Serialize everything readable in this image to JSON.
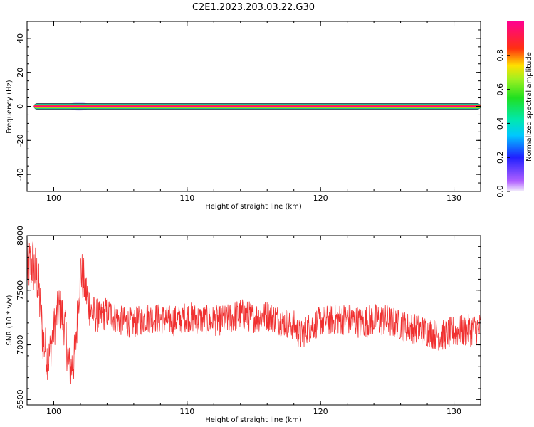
{
  "title": "C2E1.2023.203.03.22.G30",
  "chart_data": [
    {
      "type": "heatmap",
      "xlabel": "Height of straight line (km)",
      "ylabel": "Frequency (Hz)",
      "xlim": [
        98,
        132
      ],
      "ylim": [
        -50,
        50
      ],
      "x_ticks": [
        "100",
        "110",
        "120",
        "130"
      ],
      "y_ticks": [
        "40",
        "20",
        "0",
        "-20",
        "-40"
      ],
      "band": {
        "x_start": 98.5,
        "x_end": 132,
        "freq_center": 0,
        "freq_halfwidth": 1.8
      },
      "blob": {
        "x": 101.9,
        "y": 0,
        "x_halfwidth": 0.8,
        "y_halfwidth": 2.5
      },
      "colorbar": {
        "label": "Normalized spectral amplitude",
        "ticks": [
          "0.0",
          "0.2",
          "0.4",
          "0.6",
          "0.8"
        ],
        "range": [
          0,
          1
        ]
      }
    },
    {
      "type": "line",
      "xlabel": "Height of straight line (km)",
      "ylabel": "SNR (10 * v/v)",
      "xlim": [
        98,
        132
      ],
      "ylim": [
        6450,
        8000
      ],
      "x_ticks": [
        "100",
        "110",
        "120",
        "130"
      ],
      "y_ticks": [
        "8000",
        "7500",
        "7000",
        "6500"
      ],
      "series": [
        {
          "color": "#f03030",
          "x": [
            98,
            98.4,
            98.8,
            99.2,
            99.6,
            100,
            100.4,
            100.8,
            101.2,
            101.6,
            102,
            102.4,
            102.8,
            103.5,
            104,
            105,
            106,
            107,
            108,
            109,
            110,
            111,
            112,
            113,
            114,
            115,
            116,
            117,
            118,
            118.5,
            119,
            120,
            121,
            122,
            123,
            124,
            125,
            126,
            127,
            128,
            129,
            130,
            131,
            132
          ],
          "y": [
            7700,
            7750,
            7600,
            7050,
            6850,
            7150,
            7350,
            7200,
            6750,
            6900,
            7700,
            7500,
            7300,
            7250,
            7300,
            7220,
            7200,
            7250,
            7240,
            7220,
            7260,
            7230,
            7220,
            7230,
            7280,
            7250,
            7270,
            7220,
            7180,
            7080,
            7150,
            7220,
            7230,
            7240,
            7200,
            7230,
            7220,
            7180,
            7150,
            7120,
            7080,
            7120,
            7130,
            7150
          ],
          "noise": [
            260,
            280,
            260,
            240,
            200,
            200,
            200,
            220,
            240,
            220,
            230,
            220,
            180,
            150,
            150,
            140,
            140,
            140,
            140,
            140,
            140,
            140,
            140,
            140,
            150,
            140,
            140,
            140,
            140,
            140,
            140,
            140,
            140,
            150,
            150,
            150,
            150,
            140,
            140,
            140,
            140,
            150,
            150,
            150
          ]
        }
      ]
    }
  ]
}
